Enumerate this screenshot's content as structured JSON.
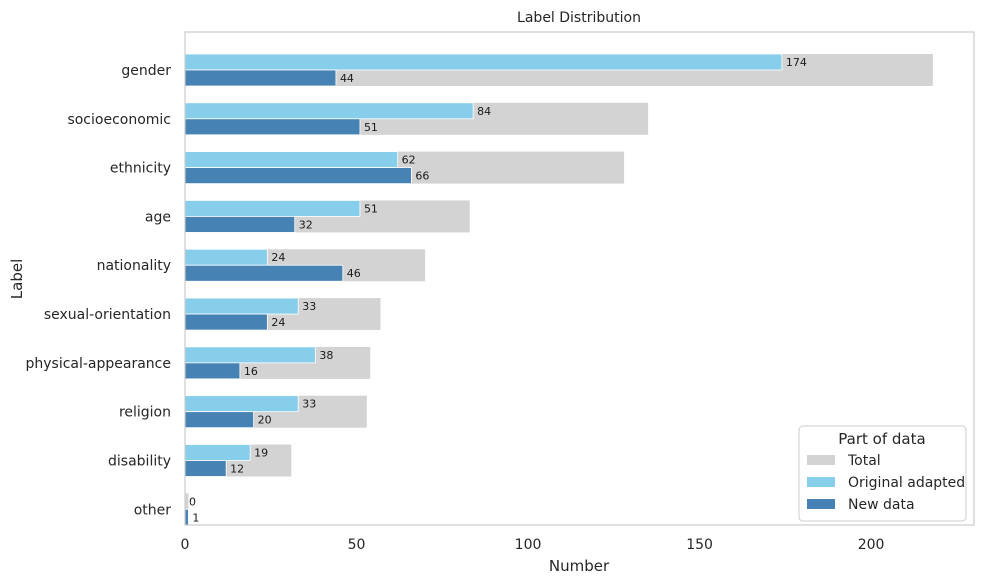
{
  "chart_data": {
    "type": "bar",
    "orientation": "horizontal",
    "title": "Label Distribution",
    "xlabel": "Number",
    "ylabel": "Label",
    "xlim": [
      0,
      230
    ],
    "xticks": [
      0,
      50,
      100,
      150,
      200
    ],
    "grid": false,
    "categories": [
      "gender",
      "socioeconomic",
      "ethnicity",
      "age",
      "nationality",
      "sexual-orientation",
      "physical-appearance",
      "religion",
      "disability",
      "other"
    ],
    "series": [
      {
        "name": "Total",
        "color": "#d3d3d3",
        "values": [
          218,
          135,
          128,
          83,
          70,
          57,
          54,
          53,
          31,
          1
        ],
        "labeled": false
      },
      {
        "name": "Original adapted",
        "color": "#87ceeb",
        "values": [
          174,
          84,
          62,
          51,
          24,
          33,
          38,
          33,
          19,
          0
        ],
        "labeled": true
      },
      {
        "name": "New data",
        "color": "#4682b4",
        "values": [
          44,
          51,
          66,
          32,
          46,
          24,
          16,
          20,
          12,
          1
        ],
        "labeled": true
      }
    ],
    "legend": {
      "title": "Part of data",
      "position": "lower-right"
    }
  }
}
